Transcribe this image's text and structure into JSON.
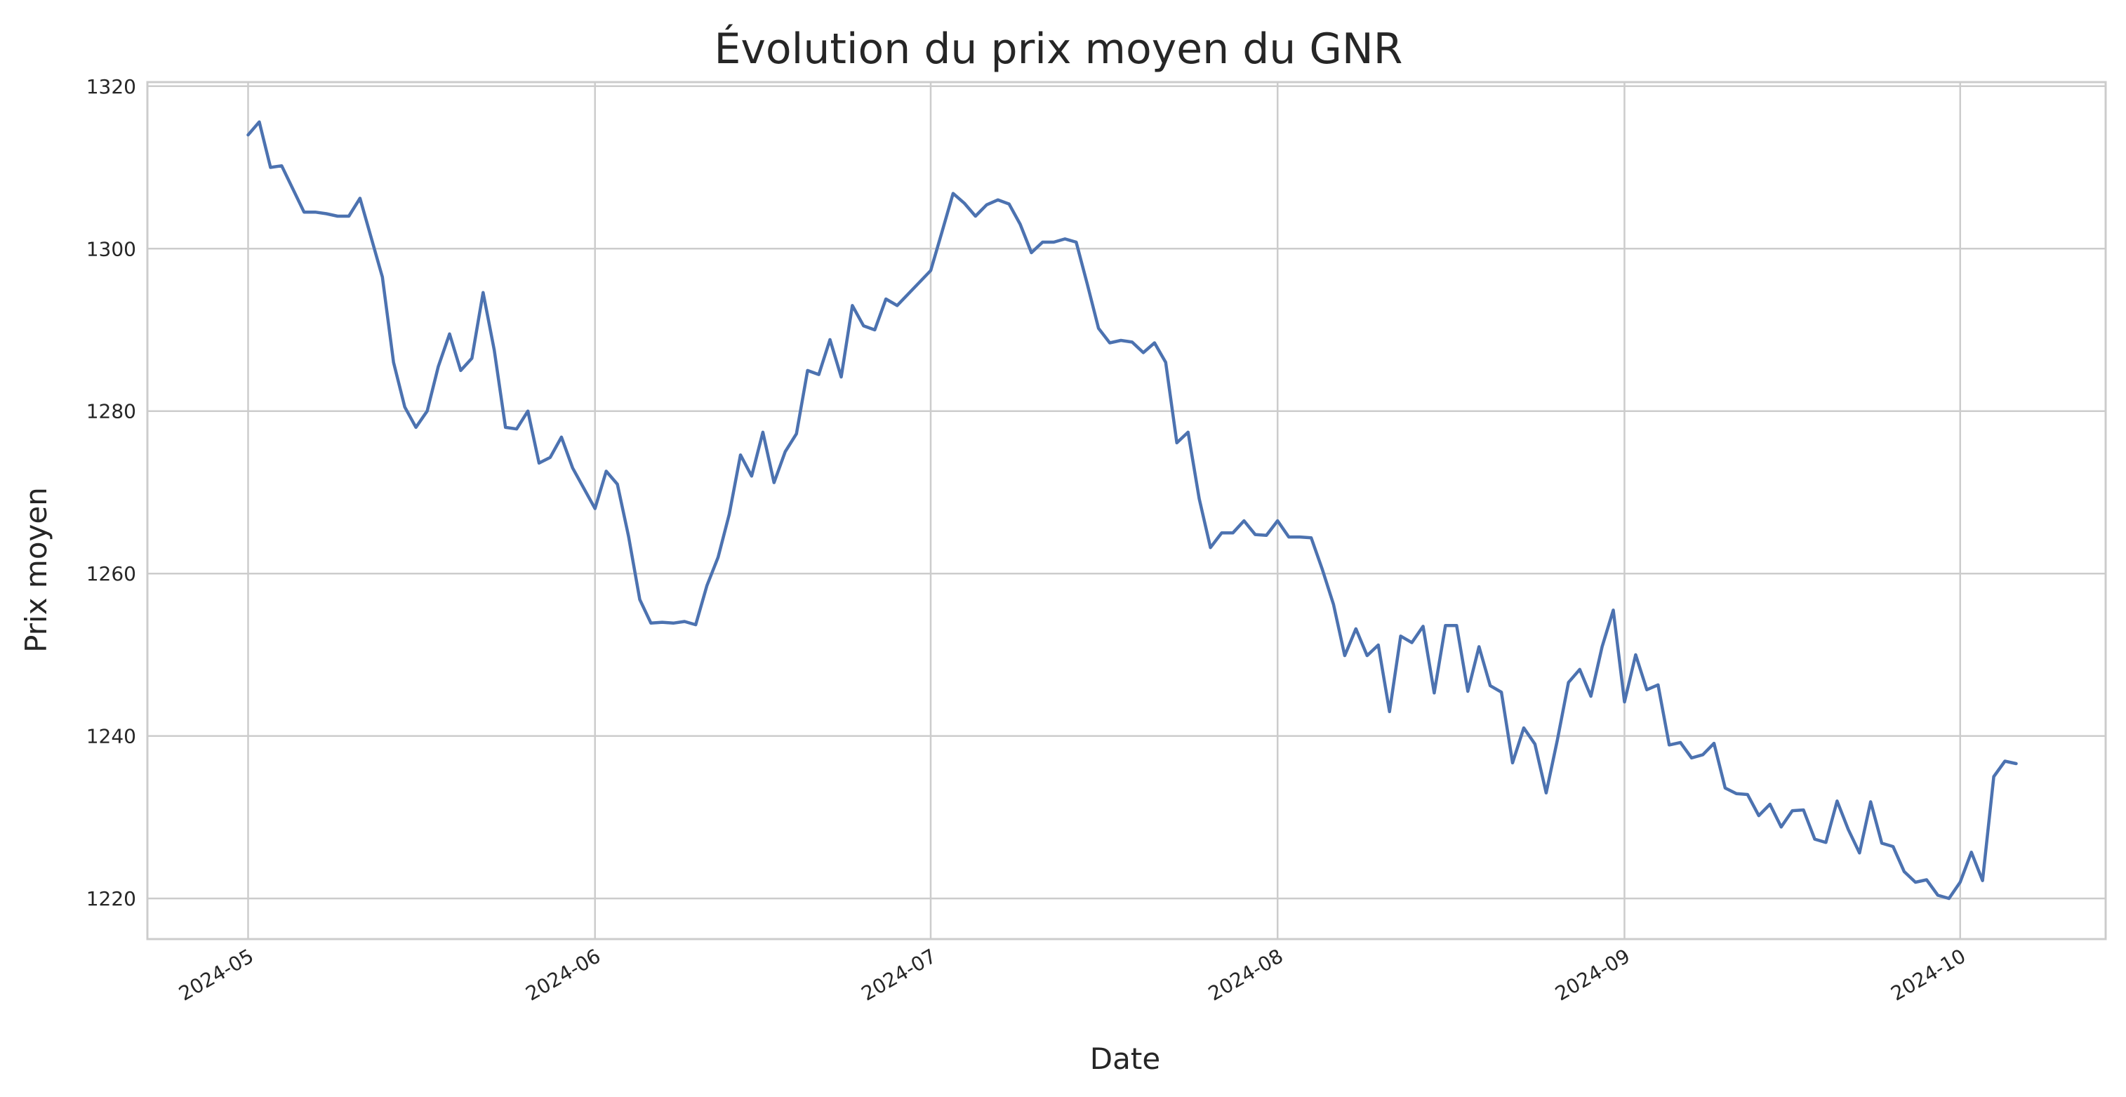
{
  "chart_data": {
    "type": "line",
    "title": "Évolution du prix moyen du GNR",
    "xlabel": "Date",
    "ylabel": "Prix moyen",
    "xlim": [
      "2024-04-22",
      "2024-10-14"
    ],
    "ylim": [
      1215,
      1320.5
    ],
    "grid": true,
    "x_ticks": [
      {
        "label": "2024-05",
        "date": "2024-05-01"
      },
      {
        "label": "2024-06",
        "date": "2024-06-01"
      },
      {
        "label": "2024-07",
        "date": "2024-07-01"
      },
      {
        "label": "2024-08",
        "date": "2024-08-01"
      },
      {
        "label": "2024-09",
        "date": "2024-09-01"
      },
      {
        "label": "2024-10",
        "date": "2024-10-01"
      }
    ],
    "y_ticks": [
      1220,
      1240,
      1260,
      1280,
      1300,
      1320
    ],
    "series": [
      {
        "color": "#4c72b0",
        "points": [
          [
            "2024-05-01",
            1314.0
          ],
          [
            "2024-05-02",
            1315.6
          ],
          [
            "2024-05-03",
            1310.0
          ],
          [
            "2024-05-04",
            1310.2
          ],
          [
            "2024-05-06",
            1304.5
          ],
          [
            "2024-05-07",
            1304.5
          ],
          [
            "2024-05-08",
            1304.3
          ],
          [
            "2024-05-09",
            1304.0
          ],
          [
            "2024-05-10",
            1304.0
          ],
          [
            "2024-05-11",
            1306.2
          ],
          [
            "2024-05-13",
            1296.5
          ],
          [
            "2024-05-14",
            1286.0
          ],
          [
            "2024-05-15",
            1280.5
          ],
          [
            "2024-05-16",
            1278.0
          ],
          [
            "2024-05-17",
            1280.0
          ],
          [
            "2024-05-18",
            1285.5
          ],
          [
            "2024-05-19",
            1289.5
          ],
          [
            "2024-05-20",
            1285.0
          ],
          [
            "2024-05-21",
            1286.5
          ],
          [
            "2024-05-22",
            1294.6
          ],
          [
            "2024-05-23",
            1287.5
          ],
          [
            "2024-05-24",
            1278.0
          ],
          [
            "2024-05-25",
            1277.8
          ],
          [
            "2024-05-26",
            1280.0
          ],
          [
            "2024-05-27",
            1273.6
          ],
          [
            "2024-05-28",
            1274.3
          ],
          [
            "2024-05-29",
            1276.8
          ],
          [
            "2024-05-30",
            1273.0
          ],
          [
            "2024-06-01",
            1268.0
          ],
          [
            "2024-06-02",
            1272.6
          ],
          [
            "2024-06-03",
            1271.0
          ],
          [
            "2024-06-04",
            1264.6
          ],
          [
            "2024-06-05",
            1256.8
          ],
          [
            "2024-06-06",
            1253.9
          ],
          [
            "2024-06-07",
            1254.0
          ],
          [
            "2024-06-08",
            1253.9
          ],
          [
            "2024-06-09",
            1254.1
          ],
          [
            "2024-06-10",
            1253.7
          ],
          [
            "2024-06-11",
            1258.5
          ],
          [
            "2024-06-12",
            1262.0
          ],
          [
            "2024-06-13",
            1267.3
          ],
          [
            "2024-06-14",
            1274.6
          ],
          [
            "2024-06-15",
            1272.0
          ],
          [
            "2024-06-16",
            1277.4
          ],
          [
            "2024-06-17",
            1271.2
          ],
          [
            "2024-06-18",
            1275.0
          ],
          [
            "2024-06-19",
            1277.2
          ],
          [
            "2024-06-20",
            1285.0
          ],
          [
            "2024-06-21",
            1284.5
          ],
          [
            "2024-06-22",
            1288.8
          ],
          [
            "2024-06-23",
            1284.2
          ],
          [
            "2024-06-24",
            1293.0
          ],
          [
            "2024-06-25",
            1290.5
          ],
          [
            "2024-06-26",
            1290.0
          ],
          [
            "2024-06-27",
            1293.8
          ],
          [
            "2024-06-28",
            1293.0
          ],
          [
            "2024-07-01",
            1297.3
          ],
          [
            "2024-07-02",
            1302.0
          ],
          [
            "2024-07-03",
            1306.8
          ],
          [
            "2024-07-04",
            1305.6
          ],
          [
            "2024-07-05",
            1304.0
          ],
          [
            "2024-07-06",
            1305.4
          ],
          [
            "2024-07-07",
            1306.0
          ],
          [
            "2024-07-08",
            1305.5
          ],
          [
            "2024-07-09",
            1303.0
          ],
          [
            "2024-07-10",
            1299.5
          ],
          [
            "2024-07-11",
            1300.8
          ],
          [
            "2024-07-12",
            1300.8
          ],
          [
            "2024-07-13",
            1301.2
          ],
          [
            "2024-07-14",
            1300.8
          ],
          [
            "2024-07-15",
            1295.6
          ],
          [
            "2024-07-16",
            1290.2
          ],
          [
            "2024-07-17",
            1288.4
          ],
          [
            "2024-07-18",
            1288.7
          ],
          [
            "2024-07-19",
            1288.5
          ],
          [
            "2024-07-20",
            1287.2
          ],
          [
            "2024-07-21",
            1288.4
          ],
          [
            "2024-07-22",
            1286.0
          ],
          [
            "2024-07-23",
            1276.1
          ],
          [
            "2024-07-24",
            1277.4
          ],
          [
            "2024-07-25",
            1269.2
          ],
          [
            "2024-07-26",
            1263.2
          ],
          [
            "2024-07-27",
            1265.0
          ],
          [
            "2024-07-28",
            1265.0
          ],
          [
            "2024-07-29",
            1266.5
          ],
          [
            "2024-07-30",
            1264.8
          ],
          [
            "2024-07-31",
            1264.7
          ],
          [
            "2024-08-01",
            1266.5
          ],
          [
            "2024-08-02",
            1264.5
          ],
          [
            "2024-08-03",
            1264.5
          ],
          [
            "2024-08-04",
            1264.4
          ],
          [
            "2024-08-05",
            1260.5
          ],
          [
            "2024-08-06",
            1256.2
          ],
          [
            "2024-08-07",
            1249.9
          ],
          [
            "2024-08-08",
            1253.2
          ],
          [
            "2024-08-09",
            1249.9
          ],
          [
            "2024-08-10",
            1251.2
          ],
          [
            "2024-08-11",
            1243.0
          ],
          [
            "2024-08-12",
            1252.3
          ],
          [
            "2024-08-13",
            1251.5
          ],
          [
            "2024-08-14",
            1253.5
          ],
          [
            "2024-08-15",
            1245.3
          ],
          [
            "2024-08-16",
            1253.6
          ],
          [
            "2024-08-17",
            1253.6
          ],
          [
            "2024-08-18",
            1245.5
          ],
          [
            "2024-08-19",
            1251.0
          ],
          [
            "2024-08-20",
            1246.2
          ],
          [
            "2024-08-21",
            1245.4
          ],
          [
            "2024-08-22",
            1236.7
          ],
          [
            "2024-08-23",
            1241.0
          ],
          [
            "2024-08-24",
            1239.0
          ],
          [
            "2024-08-25",
            1233.0
          ],
          [
            "2024-08-26",
            1239.5
          ],
          [
            "2024-08-27",
            1246.6
          ],
          [
            "2024-08-28",
            1248.2
          ],
          [
            "2024-08-29",
            1244.9
          ],
          [
            "2024-08-30",
            1251.0
          ],
          [
            "2024-08-31",
            1255.5
          ],
          [
            "2024-09-01",
            1244.2
          ],
          [
            "2024-09-02",
            1250.0
          ],
          [
            "2024-09-03",
            1245.7
          ],
          [
            "2024-09-04",
            1246.3
          ],
          [
            "2024-09-05",
            1238.9
          ],
          [
            "2024-09-06",
            1239.2
          ],
          [
            "2024-09-07",
            1237.3
          ],
          [
            "2024-09-08",
            1237.7
          ],
          [
            "2024-09-09",
            1239.1
          ],
          [
            "2024-09-10",
            1233.6
          ],
          [
            "2024-09-11",
            1232.9
          ],
          [
            "2024-09-12",
            1232.8
          ],
          [
            "2024-09-13",
            1230.2
          ],
          [
            "2024-09-14",
            1231.6
          ],
          [
            "2024-09-15",
            1228.8
          ],
          [
            "2024-09-16",
            1230.8
          ],
          [
            "2024-09-17",
            1230.9
          ],
          [
            "2024-09-18",
            1227.3
          ],
          [
            "2024-09-19",
            1226.9
          ],
          [
            "2024-09-20",
            1232.0
          ],
          [
            "2024-09-21",
            1228.5
          ],
          [
            "2024-09-22",
            1225.6
          ],
          [
            "2024-09-23",
            1231.9
          ],
          [
            "2024-09-24",
            1226.8
          ],
          [
            "2024-09-25",
            1226.4
          ],
          [
            "2024-09-26",
            1223.3
          ],
          [
            "2024-09-27",
            1222.0
          ],
          [
            "2024-09-28",
            1222.3
          ],
          [
            "2024-09-29",
            1220.4
          ],
          [
            "2024-09-30",
            1220.0
          ],
          [
            "2024-10-01",
            1222.0
          ],
          [
            "2024-10-02",
            1225.7
          ],
          [
            "2024-10-03",
            1222.2
          ],
          [
            "2024-10-04",
            1235.0
          ],
          [
            "2024-10-05",
            1236.9
          ],
          [
            "2024-10-06",
            1236.6
          ]
        ]
      }
    ]
  }
}
